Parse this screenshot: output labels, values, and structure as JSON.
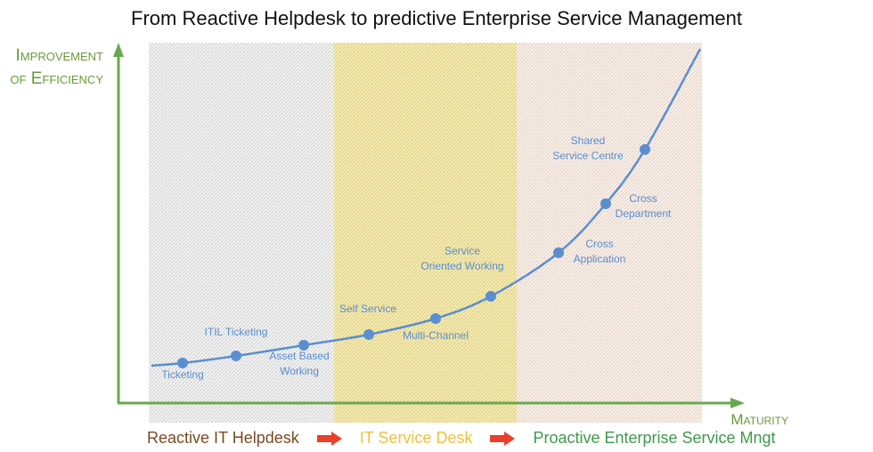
{
  "title": "From Reactive Helpdesk to predictive Enterprise Service Management",
  "y_axis_label": [
    "Improvement",
    "of Efficiency"
  ],
  "x_axis_label": "Maturity",
  "stages": [
    {
      "label": "Reactive IT Helpdesk",
      "color": "#7a4a22"
    },
    {
      "label": "IT Service Desk",
      "color": "#f0c040"
    },
    {
      "label": "Proactive Enterprise Service Mngt",
      "color": "#3f9a4a"
    }
  ],
  "milestones": [
    {
      "lines": [
        "Ticketing"
      ]
    },
    {
      "lines": [
        "ITIL Ticketing"
      ]
    },
    {
      "lines": [
        "Asset Based",
        "Working"
      ]
    },
    {
      "lines": [
        "Self Service"
      ]
    },
    {
      "lines": [
        "Multi-Channel"
      ]
    },
    {
      "lines": [
        "Service",
        "Oriented Working"
      ]
    },
    {
      "lines": [
        "Cross",
        "Application"
      ]
    },
    {
      "lines": [
        "Cross",
        "Department"
      ]
    },
    {
      "lines": [
        "Shared",
        "Service Centre"
      ]
    }
  ],
  "colors": {
    "axis": "#6aa84f",
    "curve": "#5b8ed0",
    "arrow": "#e8402a"
  }
}
